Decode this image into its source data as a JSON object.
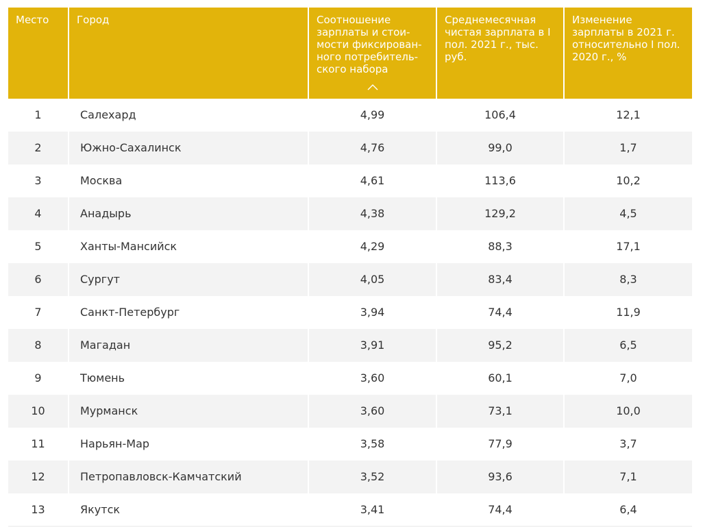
{
  "table": {
    "headers": {
      "rank": "Место",
      "city": "Город",
      "ratio": "Соотношение зарплаты и стои-мости фиксирован-ного потребитель-ского набора",
      "salary": "Среднемесячная чистая зарплата в I пол. 2021 г., тыс. руб.",
      "change": "Изменение зарплаты в 2021 г. относительно I пол. 2020 г., %"
    },
    "sort_icon": "chevron-up-icon",
    "header_color": "#e2b40b",
    "rows": [
      {
        "rank": "1",
        "city": "Салехард",
        "ratio": "4,99",
        "salary": "106,4",
        "change": "12,1"
      },
      {
        "rank": "2",
        "city": "Южно-Сахалинск",
        "ratio": "4,76",
        "salary": "99,0",
        "change": "1,7"
      },
      {
        "rank": "3",
        "city": "Москва",
        "ratio": "4,61",
        "salary": "113,6",
        "change": "10,2"
      },
      {
        "rank": "4",
        "city": "Анадырь",
        "ratio": "4,38",
        "salary": "129,2",
        "change": "4,5"
      },
      {
        "rank": "5",
        "city": "Ханты-Мансийск",
        "ratio": "4,29",
        "salary": "88,3",
        "change": "17,1"
      },
      {
        "rank": "6",
        "city": "Сургут",
        "ratio": "4,05",
        "salary": "83,4",
        "change": "8,3"
      },
      {
        "rank": "7",
        "city": "Санкт-Петербург",
        "ratio": "3,94",
        "salary": "74,4",
        "change": "11,9"
      },
      {
        "rank": "8",
        "city": "Магадан",
        "ratio": "3,91",
        "salary": "95,2",
        "change": "6,5"
      },
      {
        "rank": "9",
        "city": "Тюмень",
        "ratio": "3,60",
        "salary": "60,1",
        "change": "7,0"
      },
      {
        "rank": "10",
        "city": "Мурманск",
        "ratio": "3,60",
        "salary": "73,1",
        "change": "10,0"
      },
      {
        "rank": "11",
        "city": "Нарьян-Мар",
        "ratio": "3,58",
        "salary": "77,9",
        "change": "3,7"
      },
      {
        "rank": "12",
        "city": "Петропавловск-Камчатский",
        "ratio": "3,52",
        "salary": "93,6",
        "change": "7,1"
      },
      {
        "rank": "13",
        "city": "Якутск",
        "ratio": "3,41",
        "salary": "74,4",
        "change": "6,4"
      }
    ]
  }
}
